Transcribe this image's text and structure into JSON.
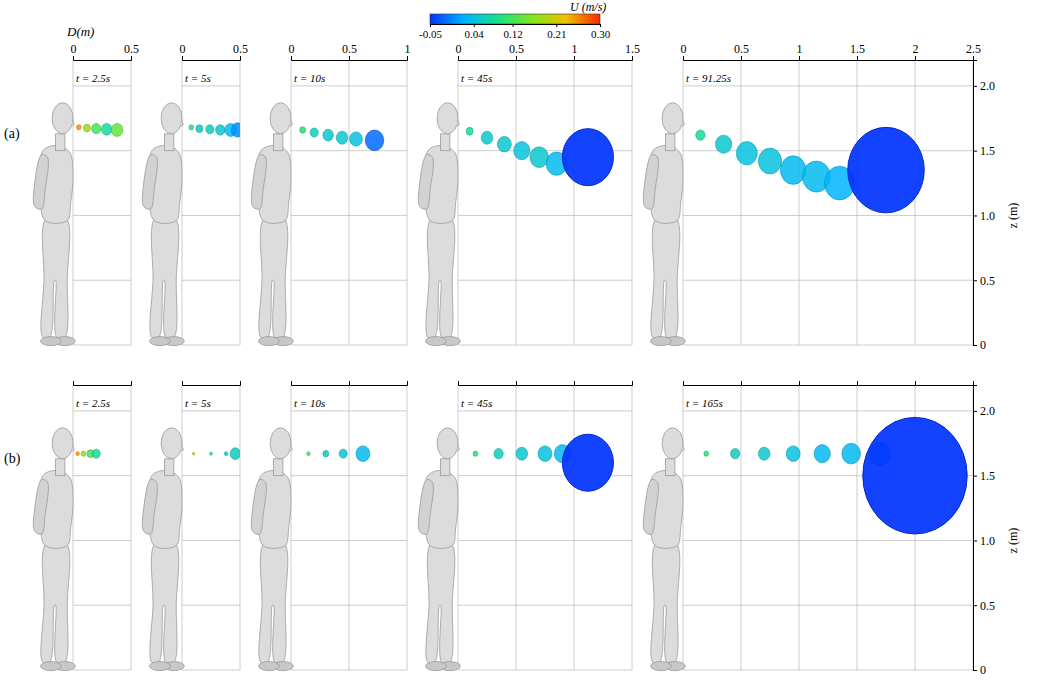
{
  "chart_data": {
    "type": "scatter",
    "x_label": "D(m)",
    "y_label": "z (m)",
    "ylim": [
      0,
      2.2
    ],
    "yticks": [
      0,
      0.5,
      {
        "value": 1,
        "label": "1.0"
      },
      1.5,
      {
        "value": 2,
        "label": "2.0"
      }
    ],
    "grid": true,
    "colorbar": {
      "title": "U (m/s)",
      "range": [
        -0.05,
        0.3
      ],
      "ticks": [
        -0.05,
        0.04,
        0.12,
        0.21,
        {
          "value": 0.3,
          "label": "0.30"
        }
      ]
    },
    "rows": [
      {
        "label": "(a)",
        "tick_labels": true,
        "panels": [
          {
            "title": "t = 2.5s",
            "xlim": [
              0,
              0.5
            ],
            "xticks": [
              0,
              0.5
            ],
            "x": [
              0.05,
              0.12,
              0.2,
              0.29,
              0.38
            ],
            "y": [
              1.68,
              1.675,
              1.67,
              1.665,
              1.66
            ],
            "size": [
              0.02,
              0.03,
              0.04,
              0.045,
              0.05
            ],
            "values": [
              0.25,
              0.18,
              0.12,
              0.08,
              0.14
            ]
          },
          {
            "title": "t = 5s",
            "xlim": [
              0,
              0.5
            ],
            "xticks": [
              0,
              0.5
            ],
            "x": [
              0.08,
              0.15,
              0.24,
              0.33,
              0.42,
              0.48
            ],
            "y": [
              1.68,
              1.67,
              1.665,
              1.66,
              1.66,
              1.66
            ],
            "size": [
              0.02,
              0.03,
              0.035,
              0.04,
              0.05,
              0.055
            ],
            "values": [
              0.1,
              0.06,
              0.06,
              0.05,
              0.03,
              0
            ]
          },
          {
            "title": "t = 10s",
            "xlim": [
              0,
              1
            ],
            "xticks": [
              0,
              0.5,
              1
            ],
            "x": [
              0.1,
              0.2,
              0.32,
              0.44,
              0.56,
              0.72
            ],
            "y": [
              1.66,
              1.64,
              1.62,
              1.6,
              1.59,
              1.58
            ],
            "size": [
              0.025,
              0.035,
              0.045,
              0.05,
              0.055,
              0.08
            ],
            "values": [
              0.1,
              0.06,
              0.05,
              0.05,
              0.04,
              -0.02
            ]
          },
          {
            "title": "t = 45s",
            "xlim": [
              0,
              1.5
            ],
            "xticks": [
              0,
              0.5,
              1,
              1.5
            ],
            "x": [
              0.1,
              0.25,
              0.4,
              0.55,
              0.7,
              0.85,
              1.12
            ],
            "y": [
              1.65,
              1.6,
              1.55,
              1.5,
              1.45,
              1.4,
              1.45
            ],
            "size": [
              0.03,
              0.05,
              0.06,
              0.07,
              0.08,
              0.09,
              0.22
            ],
            "values": [
              0.08,
              0.05,
              0.05,
              0.04,
              0.05,
              0.03,
              -0.05
            ]
          },
          {
            "title": "t = 91.25s",
            "xlim": [
              0,
              2.5
            ],
            "xticks": [
              0,
              0.5,
              1,
              1.5,
              2,
              2.5
            ],
            "x": [
              0.15,
              0.35,
              0.55,
              0.75,
              0.95,
              1.15,
              1.35,
              1.75
            ],
            "y": [
              1.62,
              1.55,
              1.48,
              1.42,
              1.35,
              1.3,
              1.25,
              1.35
            ],
            "size": [
              0.04,
              0.07,
              0.09,
              0.1,
              0.11,
              0.12,
              0.13,
              0.33
            ],
            "values": [
              0.08,
              0.05,
              0.04,
              0.04,
              0.03,
              0.03,
              0.02,
              -0.05
            ]
          }
        ]
      },
      {
        "label": "(b)",
        "tick_labels": "y",
        "panels": [
          {
            "title": "t = 2.5s",
            "xlim": [
              0,
              0.5
            ],
            "xticks": [
              0,
              0.5
            ],
            "x": [
              0.04,
              0.09,
              0.15,
              0.2
            ],
            "y": [
              1.67,
              1.67,
              1.67,
              1.67
            ],
            "size": [
              0.015,
              0.02,
              0.03,
              0.035
            ],
            "values": [
              0.25,
              0.18,
              0.12,
              0.08
            ]
          },
          {
            "title": "t = 5s",
            "xlim": [
              0,
              0.5
            ],
            "xticks": [
              0,
              0.5
            ],
            "x": [
              0.1,
              0.25,
              0.38,
              0.46
            ],
            "y": [
              1.67,
              1.67,
              1.67,
              1.67
            ],
            "size": [
              0.01,
              0.012,
              0.015,
              0.045
            ],
            "values": [
              0.2,
              0.1,
              0.05,
              0.06
            ]
          },
          {
            "title": "t = 10s",
            "xlim": [
              0,
              1
            ],
            "xticks": [
              0,
              0.5,
              1
            ],
            "x": [
              0.15,
              0.3,
              0.45,
              0.62
            ],
            "y": [
              1.67,
              1.67,
              1.67,
              1.67
            ],
            "size": [
              0.015,
              0.025,
              0.035,
              0.06
            ],
            "values": [
              0.12,
              0.06,
              0.05,
              0.03
            ]
          },
          {
            "title": "t = 45s",
            "xlim": [
              0,
              1.5
            ],
            "xticks": [
              0,
              0.5,
              1,
              1.5
            ],
            "x": [
              0.15,
              0.35,
              0.55,
              0.75,
              0.9,
              1.12
            ],
            "y": [
              1.67,
              1.67,
              1.67,
              1.67,
              1.67,
              1.6
            ],
            "size": [
              0.02,
              0.04,
              0.05,
              0.06,
              0.07,
              0.22
            ],
            "values": [
              0.1,
              0.06,
              0.05,
              0.04,
              0.03,
              -0.05
            ]
          },
          {
            "title": "t = 165s",
            "xlim": [
              0,
              2.5
            ],
            "xticks": [
              0,
              0.5,
              1,
              1.5,
              2,
              2.5
            ],
            "x": [
              0.2,
              0.45,
              0.7,
              0.95,
              1.2,
              1.45,
              1.7,
              2.0
            ],
            "y": [
              1.67,
              1.67,
              1.67,
              1.67,
              1.67,
              1.67,
              1.67,
              1.5
            ],
            "size": [
              0.02,
              0.04,
              0.05,
              0.06,
              0.07,
              0.08,
              0.09,
              0.45
            ],
            "values": [
              0.1,
              0.06,
              0.05,
              0.04,
              0.03,
              0.03,
              0.02,
              -0.05
            ]
          }
        ]
      }
    ]
  }
}
